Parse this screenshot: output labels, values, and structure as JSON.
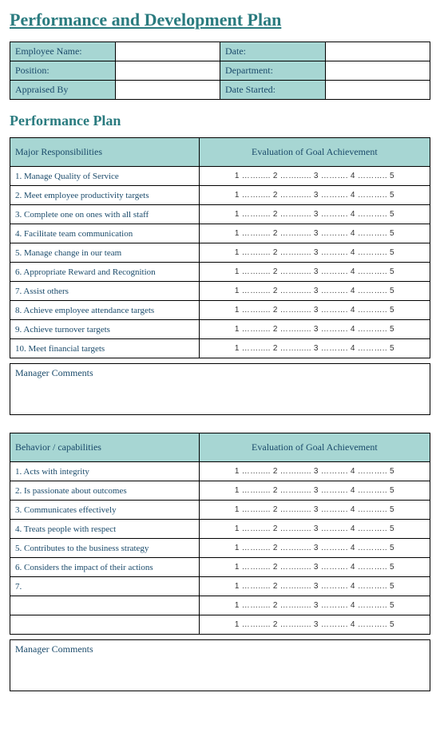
{
  "colors": {
    "accent": "#2a7b7f",
    "header_bg": "#a7d6d3",
    "text": "#1a4a6a",
    "border": "#000000",
    "background": "#ffffff"
  },
  "title": "Performance and Development Plan",
  "info": {
    "row1": {
      "label1": "Employee Name:",
      "value1": "",
      "label2": "Date:",
      "value2": ""
    },
    "row2": {
      "label1": "Position:",
      "value1": "",
      "label2": "Department:",
      "value2": ""
    },
    "row3": {
      "label1": "Appraised By",
      "value1": "",
      "label2": "Date Started:",
      "value2": ""
    }
  },
  "section1": {
    "title": "Performance Plan",
    "header_left": "Major Responsibilities",
    "header_right": "Evaluation of Goal Achievement",
    "rows": {
      "r0": "1. Manage Quality of Service",
      "r1": "2. Meet employee productivity targets",
      "r2": "3. Complete one on ones with all staff",
      "r3": "4. Facilitate team communication",
      "r4": "5. Manage change in our team",
      "r5": "6. Appropriate Reward and Recognition",
      "r6": "7. Assist others",
      "r7": "8. Achieve employee attendance targets",
      "r8": "9. Achieve turnover targets",
      "r9": "10. Meet financial targets"
    },
    "comments_label": "Manager Comments"
  },
  "section2": {
    "header_left": "Behavior / capabilities",
    "header_right": "Evaluation of Goal Achievement",
    "rows": {
      "r0": "1. Acts with integrity",
      "r1": "2. Is passionate about outcomes",
      "r2": "3. Communicates effectively",
      "r3": "4. Treats people with respect",
      "r4": "5. Contributes to the business strategy",
      "r5": "6. Considers the impact of their actions",
      "r6": "7.",
      "r7": "",
      "r8": ""
    },
    "comments_label": "Manager Comments"
  },
  "scale_text": "1 ……..... 2 ……...... 3 ………. 4 ……….. 5"
}
